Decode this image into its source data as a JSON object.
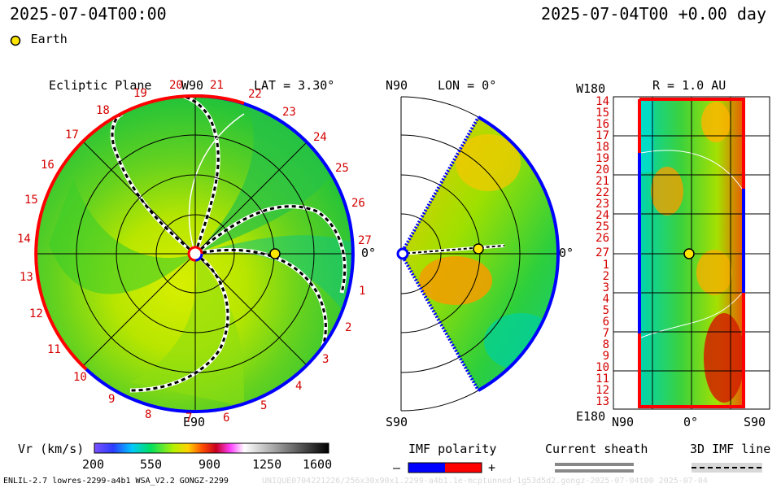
{
  "header": {
    "left_time": "2025-07-04T00:00",
    "right_time": "2025-07-04T00 +0.00 day",
    "legend_label": "Earth",
    "legend_color": "#ffe600"
  },
  "panel_ecliptic": {
    "title": "Ecliptic Plane",
    "top_label": "W90",
    "bottom_label": "E90",
    "right_label": "0°",
    "lat_label": "LAT = 3.30°",
    "carrington_labels": [
      "19",
      "20",
      "21",
      "22",
      "23",
      "24",
      "25",
      "26",
      "27",
      "1",
      "2",
      "3",
      "4",
      "5",
      "6",
      "7",
      "8",
      "9",
      "10",
      "11",
      "12",
      "13",
      "14",
      "15",
      "16",
      "17",
      "18"
    ]
  },
  "panel_meridional": {
    "top_label": "N90",
    "bottom_label": "S90",
    "right_label": "0°",
    "lon_label": "LON = 0°"
  },
  "panel_surface": {
    "r_label": "R = 1.0 AU",
    "top_left_label": "W180",
    "bottom_left_label": "E180",
    "x_labels": [
      "N90",
      "0°",
      "S90"
    ],
    "y_labels": [
      "14",
      "15",
      "16",
      "17",
      "18",
      "19",
      "20",
      "21",
      "22",
      "23",
      "24",
      "25",
      "26",
      "27",
      "1",
      "2",
      "3",
      "4",
      "5",
      "6",
      "7",
      "8",
      "9",
      "10",
      "11",
      "12",
      "13"
    ]
  },
  "colorbar": {
    "label": "Vr (km/s)",
    "ticks": [
      "200",
      "550",
      "900",
      "1250",
      "1600"
    ]
  },
  "imf_polarity": {
    "label": "IMF polarity",
    "minus": "–",
    "plus": "+",
    "neg_color": "#0000ff",
    "pos_color": "#ff0000"
  },
  "current_sheath": {
    "label": "Current sheath"
  },
  "imf_line": {
    "label": "3D IMF line"
  },
  "footer": {
    "model_info": "ENLIL-2.7 lowres-2299-a4b1 WSA_V2.2 GONGZ-2299",
    "run_id": "UNIQUE0704221226/256x30x90x1.2299-a4b1.1e-mcptunned-1g53d5d2.gongz-2025-07-04t00 2025-07-04"
  }
}
